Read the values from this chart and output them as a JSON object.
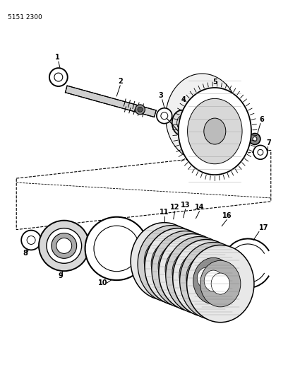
{
  "part_number": "5151 2300",
  "bg": "#ffffff",
  "lc": "#000000",
  "fig_width": 4.08,
  "fig_height": 5.33,
  "dpi": 100
}
